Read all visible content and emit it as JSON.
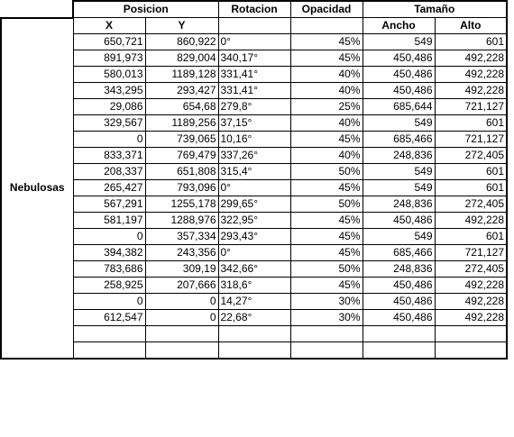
{
  "header": {
    "posicion": "Posicion",
    "rotacion": "Rotacion",
    "opacidad": "Opacidad",
    "tamano": "Tamaño",
    "x": "X",
    "y": "Y",
    "ancho": "Ancho",
    "alto": "Alto"
  },
  "group_label": "Nebulosas",
  "rows": [
    {
      "x": "650,721",
      "y": "860,922",
      "rot": "0°",
      "op": "45%",
      "w": "549",
      "h": "601"
    },
    {
      "x": "891,973",
      "y": "829,004",
      "rot": "340,17°",
      "op": "45%",
      "w": "450,486",
      "h": "492,228"
    },
    {
      "x": "580,013",
      "y": "1189,128",
      "rot": "331,41°",
      "op": "40%",
      "w": "450,486",
      "h": "492,228"
    },
    {
      "x": "343,295",
      "y": "293,427",
      "rot": "331,41°",
      "op": "40%",
      "w": "450,486",
      "h": "492,228"
    },
    {
      "x": "29,086",
      "y": "654,68",
      "rot": "279,8°",
      "op": "25%",
      "w": "685,644",
      "h": "721,127"
    },
    {
      "x": "329,567",
      "y": "1189,256",
      "rot": "37,15°",
      "op": "40%",
      "w": "549",
      "h": "601"
    },
    {
      "x": "0",
      "y": "739,065",
      "rot": "10,16°",
      "op": "45%",
      "w": "685,466",
      "h": "721,127"
    },
    {
      "x": "833,371",
      "y": "769,479",
      "rot": "337,26°",
      "op": "40%",
      "w": "248,836",
      "h": "272,405"
    },
    {
      "x": "208,337",
      "y": "651,808",
      "rot": "315,4°",
      "op": "50%",
      "w": "549",
      "h": "601"
    },
    {
      "x": "265,427",
      "y": "793,096",
      "rot": "0°",
      "op": "45%",
      "w": "549",
      "h": "601"
    },
    {
      "x": "567,291",
      "y": "1255,178",
      "rot": "299,65°",
      "op": "50%",
      "w": "248,836",
      "h": "272,405"
    },
    {
      "x": "581,197",
      "y": "1288,976",
      "rot": "322,95°",
      "op": "45%",
      "w": "450,486",
      "h": "492,228"
    },
    {
      "x": "0",
      "y": "357,334",
      "rot": "293,43°",
      "op": "45%",
      "w": "549",
      "h": "601"
    },
    {
      "x": "394,382",
      "y": "243,356",
      "rot": "0°",
      "op": "45%",
      "w": "685,466",
      "h": "721,127"
    },
    {
      "x": "783,686",
      "y": "309,19",
      "rot": "342,66°",
      "op": "50%",
      "w": "248,836",
      "h": "272,405"
    },
    {
      "x": "258,925",
      "y": "207,666",
      "rot": "318,6°",
      "op": "45%",
      "w": "450,486",
      "h": "492,228"
    },
    {
      "x": "0",
      "y": "0",
      "rot": "14,27°",
      "op": "30%",
      "w": "450,486",
      "h": "492,228"
    },
    {
      "x": "612,547",
      "y": "0",
      "rot": "22,68°",
      "op": "30%",
      "w": "450,486",
      "h": "492,228"
    },
    {
      "x": "",
      "y": "",
      "rot": "",
      "op": "",
      "w": "",
      "h": ""
    },
    {
      "x": "",
      "y": "",
      "rot": "",
      "op": "",
      "w": "",
      "h": ""
    }
  ]
}
